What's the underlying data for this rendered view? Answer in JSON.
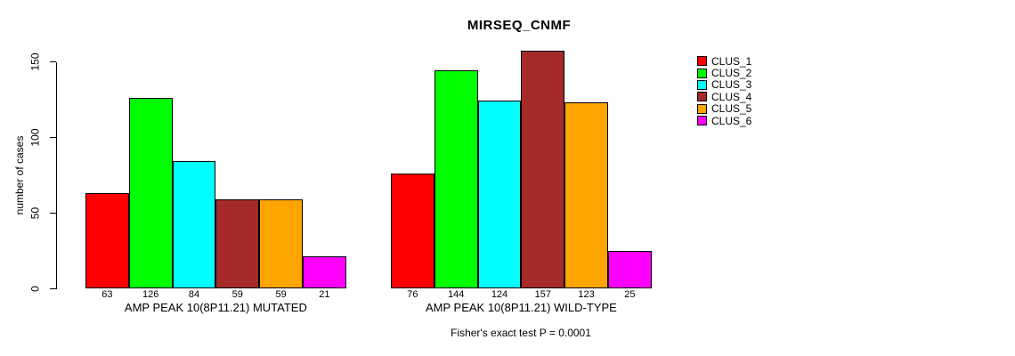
{
  "title": "MIRSEQ_CNMF",
  "y_axis": {
    "label": "number of cases",
    "tick_labels": [
      "0",
      "50",
      "100",
      "150"
    ]
  },
  "footer": "Fisher's exact test P = 0.0001",
  "legend": {
    "items": [
      {
        "label": "CLUS_1",
        "color": "#FF0000"
      },
      {
        "label": "CLUS_2",
        "color": "#00FF00"
      },
      {
        "label": "CLUS_3",
        "color": "#00FFFF"
      },
      {
        "label": "CLUS_4",
        "color": "#A52A2A"
      },
      {
        "label": "CLUS_5",
        "color": "#FFA500"
      },
      {
        "label": "CLUS_6",
        "color": "#FF00FF"
      }
    ]
  },
  "chart_data": {
    "type": "bar",
    "title": "MIRSEQ_CNMF",
    "xlabel": "",
    "ylabel": "number of cases",
    "ylim": [
      0,
      165
    ],
    "yticks": [
      0,
      50,
      100,
      150
    ],
    "grid": false,
    "legend_position": "right",
    "series_labels": [
      "CLUS_1",
      "CLUS_2",
      "CLUS_3",
      "CLUS_4",
      "CLUS_5",
      "CLUS_6"
    ],
    "colors": [
      "#FF0000",
      "#00FF00",
      "#00FFFF",
      "#A52A2A",
      "#FFA500",
      "#FF00FF"
    ],
    "groups": [
      {
        "label": "AMP PEAK 10(8P11.21) MUTATED",
        "values": [
          63,
          126,
          84,
          59,
          59,
          21
        ]
      },
      {
        "label": "AMP PEAK 10(8P11.21) WILD-TYPE",
        "values": [
          76,
          144,
          124,
          157,
          123,
          25
        ]
      }
    ],
    "annotation": "Fisher's exact test P = 0.0001"
  }
}
